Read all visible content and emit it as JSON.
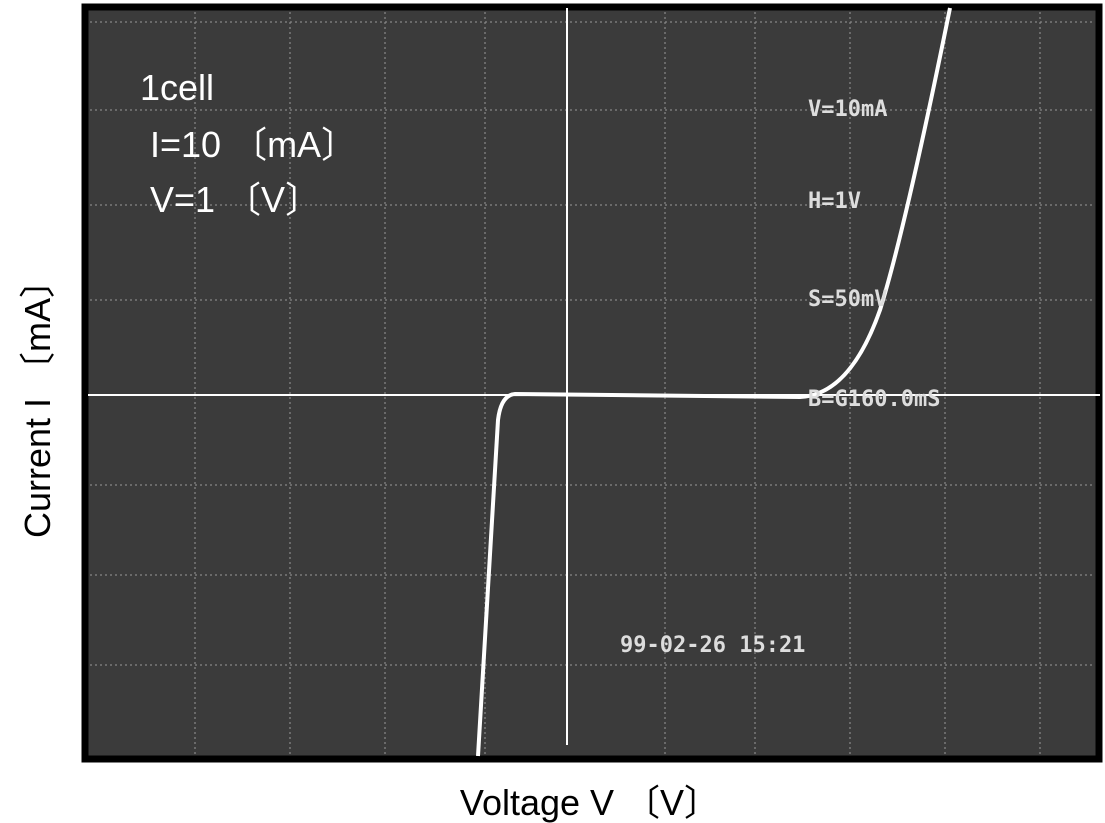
{
  "screen": {
    "annotations": [
      "1cell",
      "I=10 〔mA〕",
      "V=1 〔V〕"
    ],
    "scope_readout": [
      "V=10mA",
      "H=1V",
      "S=50mV",
      "B=G160.0mS"
    ],
    "timestamp": "99-02-26 15:21"
  },
  "x_axis_label": "Voltage V 〔V〕",
  "y_axis_label": "Current I 〔mA〕"
}
